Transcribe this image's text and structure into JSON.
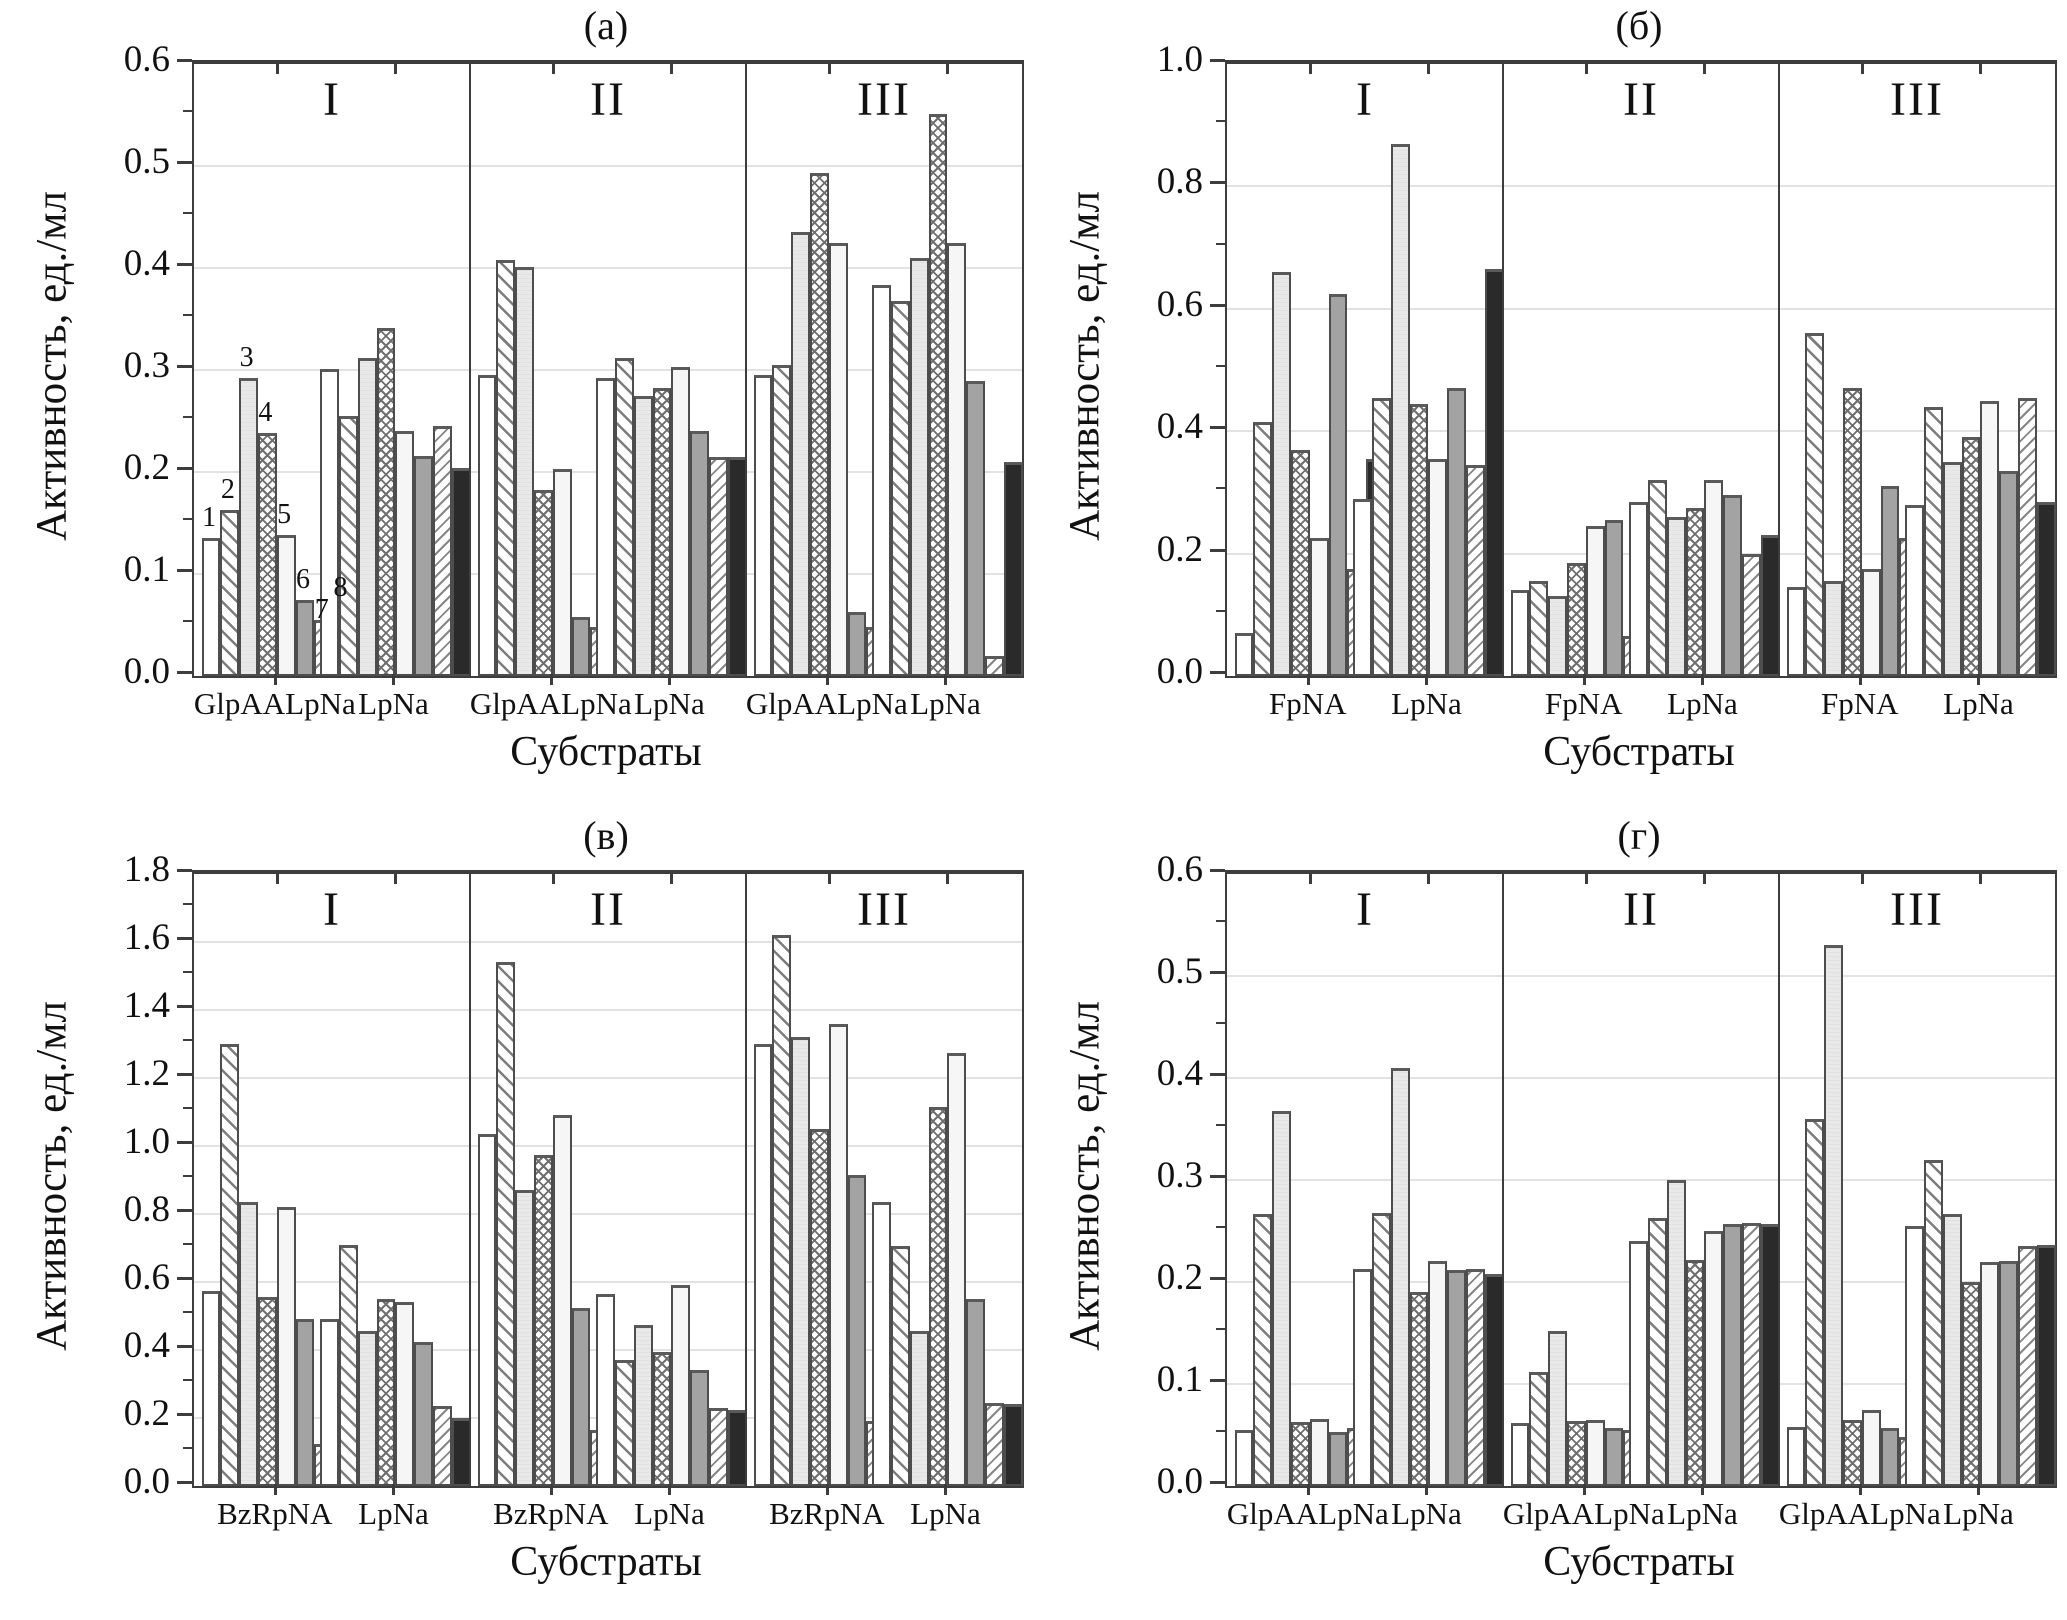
{
  "figure": {
    "language": "ru",
    "y_axis_label": "Активность, ед./мл",
    "x_axis_label": "Субстраты",
    "section_labels": [
      "I",
      "II",
      "III"
    ],
    "series_legend": [
      {
        "id": "1",
        "pattern": "white-plain"
      },
      {
        "id": "2",
        "pattern": "forward-diagonal-hatch"
      },
      {
        "id": "3",
        "pattern": "light-gray"
      },
      {
        "id": "4",
        "pattern": "diamond-crosshatch"
      },
      {
        "id": "5",
        "pattern": "white-plain"
      },
      {
        "id": "6",
        "pattern": "medium-gray"
      },
      {
        "id": "7",
        "pattern": "back-diagonal-hatch"
      },
      {
        "id": "8",
        "pattern": "black"
      }
    ],
    "colors": {
      "axis": "#3d3d3d",
      "grid": "#e2e2e2",
      "bar_border": "#4d4d4d",
      "light_gray_fill": "#e6e6e6",
      "medium_gray_fill": "#a3a3a3",
      "black_fill": "#2a2a2a"
    }
  },
  "chart_data": [
    {
      "type": "bar",
      "title": "(а)",
      "ylabel": "Активность, ед./мл",
      "xlabel": "Субстраты",
      "ylim": [
        0,
        0.6
      ],
      "yticks": [
        "0.0",
        "0.1",
        "0.2",
        "0.3",
        "0.4",
        "0.5",
        "0.6"
      ],
      "grid": true,
      "bar_number_labels": [
        "1",
        "2",
        "3",
        "4",
        "5",
        "6",
        "7",
        "8"
      ],
      "sections": [
        {
          "label": "I",
          "groups": [
            {
              "category": "GlpAALpNa",
              "values": [
                0.135,
                0.163,
                0.292,
                0.238,
                0.138,
                0.075,
                0.055,
                0.067
              ]
            },
            {
              "category": "LpNa",
              "values": [
                0.301,
                0.255,
                0.312,
                0.341,
                0.24,
                0.216,
                0.245,
                0.204
              ]
            }
          ]
        },
        {
          "label": "II",
          "groups": [
            {
              "category": "GlpAALpNa",
              "values": [
                0.295,
                0.408,
                0.401,
                0.182,
                0.203,
                0.058,
                0.048,
                0.055
              ]
            },
            {
              "category": "LpNa",
              "values": [
                0.292,
                0.312,
                0.275,
                0.282,
                0.303,
                0.24,
                0.215,
                0.215
              ]
            }
          ]
        },
        {
          "label": "III",
          "groups": [
            {
              "category": "GlpAALpNa",
              "values": [
                0.295,
                0.305,
                0.435,
                0.493,
                0.425,
                0.063,
                0.048,
                0.046
              ]
            },
            {
              "category": "LpNa",
              "values": [
                0.383,
                0.368,
                0.41,
                0.551,
                0.425,
                0.289,
                0.02,
                0.21
              ]
            }
          ]
        }
      ]
    },
    {
      "type": "bar",
      "title": "(б)",
      "ylabel": "Активность, ед./мл",
      "xlabel": "Субстраты",
      "ylim": [
        0,
        1.0
      ],
      "yticks": [
        "0.0",
        "0.2",
        "0.4",
        "0.6",
        "0.8",
        "1.0"
      ],
      "grid": true,
      "sections": [
        {
          "label": "I",
          "groups": [
            {
              "category": "FpNA",
              "values": [
                0.07,
                0.415,
                0.66,
                0.37,
                0.225,
                0.625,
                0.175,
                0.355
              ]
            },
            {
              "category": "LpNa",
              "values": [
                0.29,
                0.455,
                0.87,
                0.445,
                0.355,
                0.47,
                0.345,
                0.665
              ]
            }
          ]
        },
        {
          "label": "II",
          "groups": [
            {
              "category": "FpNA",
              "values": [
                0.14,
                0.155,
                0.13,
                0.185,
                0.245,
                0.255,
                0.065,
                0.07
              ]
            },
            {
              "category": "LpNa",
              "values": [
                0.285,
                0.32,
                0.26,
                0.275,
                0.32,
                0.295,
                0.2,
                0.23
              ]
            }
          ]
        },
        {
          "label": "III",
          "groups": [
            {
              "category": "FpNA",
              "values": [
                0.145,
                0.56,
                0.155,
                0.47,
                0.175,
                0.31,
                0.225,
                0.13
              ]
            },
            {
              "category": "LpNa",
              "values": [
                0.28,
                0.44,
                0.35,
                0.39,
                0.45,
                0.335,
                0.455,
                0.285
              ]
            }
          ]
        }
      ]
    },
    {
      "type": "bar",
      "title": "(в)",
      "ylabel": "Активность, ед./мл",
      "xlabel": "Субстраты",
      "ylim": [
        0,
        1.8
      ],
      "yticks": [
        "0.0",
        "0.2",
        "0.4",
        "0.6",
        "0.8",
        "1.0",
        "1.2",
        "1.4",
        "1.6",
        "1.8"
      ],
      "grid": true,
      "sections": [
        {
          "label": "I",
          "groups": [
            {
              "category": "BzRpNA",
              "values": [
                0.575,
                1.3,
                0.835,
                0.555,
                0.82,
                0.49,
                0.125,
                0.13
              ]
            },
            {
              "category": "LpNa",
              "values": [
                0.49,
                0.71,
                0.455,
                0.55,
                0.54,
                0.425,
                0.235,
                0.2
              ]
            }
          ]
        },
        {
          "label": "II",
          "groups": [
            {
              "category": "BzRpNA",
              "values": [
                1.035,
                1.54,
                0.87,
                0.975,
                1.09,
                0.525,
                0.165,
                0.085
              ]
            },
            {
              "category": "LpNa",
              "values": [
                0.565,
                0.37,
                0.475,
                0.395,
                0.59,
                0.34,
                0.23,
                0.225
              ]
            }
          ]
        },
        {
          "label": "III",
          "groups": [
            {
              "category": "BzRpNA",
              "values": [
                1.3,
                1.62,
                1.32,
                1.05,
                1.36,
                0.915,
                0.19,
                0.075
              ]
            },
            {
              "category": "LpNa",
              "values": [
                0.835,
                0.705,
                0.455,
                1.115,
                1.275,
                0.55,
                0.245,
                0.24
              ]
            }
          ]
        }
      ]
    },
    {
      "type": "bar",
      "title": "(г)",
      "ylabel": "Активность, ед./мл",
      "xlabel": "Субстраты",
      "ylim": [
        0,
        0.6
      ],
      "yticks": [
        "0.0",
        "0.1",
        "0.2",
        "0.3",
        "0.4",
        "0.5",
        "0.6"
      ],
      "grid": true,
      "sections": [
        {
          "label": "I",
          "groups": [
            {
              "category": "GlpAALpNa",
              "values": [
                0.055,
                0.267,
                0.368,
                0.063,
                0.066,
                0.053,
                0.057,
                0.042
              ]
            },
            {
              "category": "LpNa",
              "values": [
                0.213,
                0.268,
                0.41,
                0.19,
                0.221,
                0.212,
                0.213,
                0.208
              ]
            }
          ]
        },
        {
          "label": "II",
          "groups": [
            {
              "category": "GlpAALpNa",
              "values": [
                0.062,
                0.112,
                0.152,
                0.064,
                0.065,
                0.057,
                0.055,
                0.053
              ]
            },
            {
              "category": "LpNa",
              "values": [
                0.24,
                0.263,
                0.3,
                0.222,
                0.25,
                0.257,
                0.258,
                0.257
              ]
            }
          ]
        },
        {
          "label": "III",
          "groups": [
            {
              "category": "GlpAALpNa",
              "values": [
                0.058,
                0.36,
                0.53,
                0.065,
                0.075,
                0.057,
                0.048,
                0.06
              ]
            },
            {
              "category": "LpNa",
              "values": [
                0.255,
                0.32,
                0.267,
                0.2,
                0.22,
                0.221,
                0.235,
                0.236
              ]
            }
          ]
        }
      ]
    }
  ]
}
